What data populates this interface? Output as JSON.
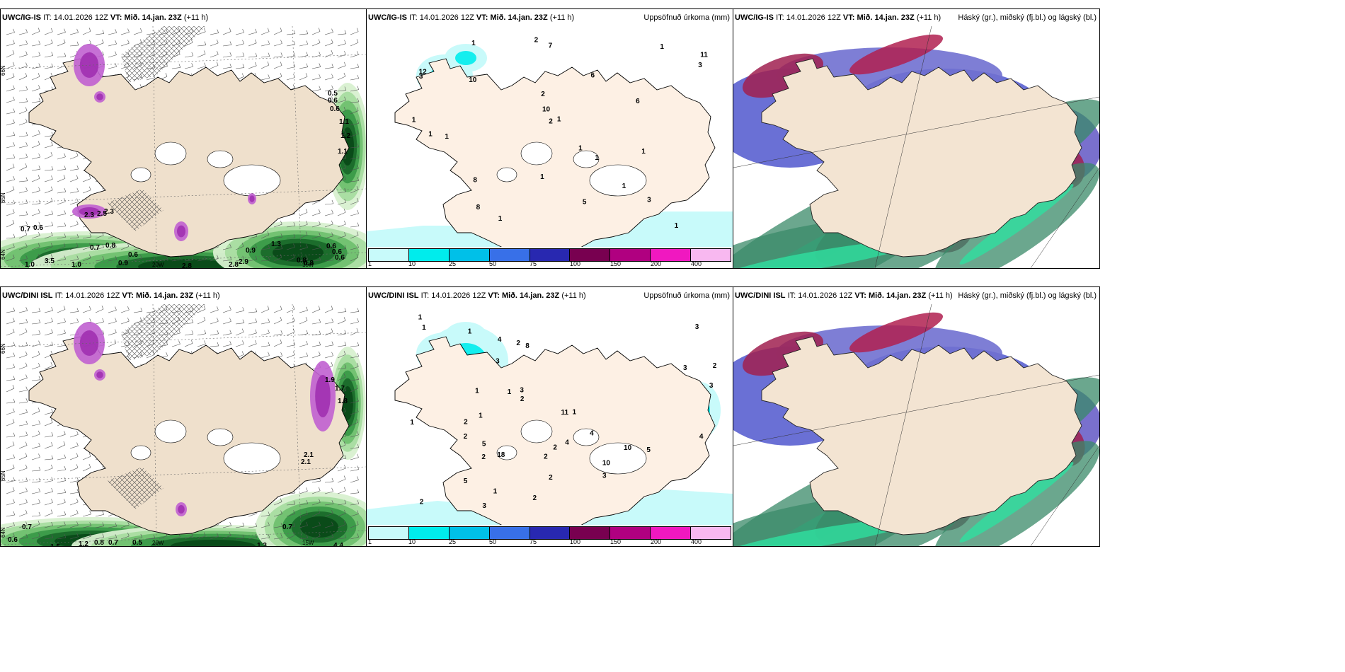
{
  "colorbar": {
    "ticks": [
      "1",
      "10",
      "25",
      "50",
      "75",
      "100",
      "150",
      "200",
      "400"
    ],
    "colors": [
      "#c8fafa",
      "#00ecec",
      "#00c0e8",
      "#3870e8",
      "#2828b0",
      "#780050",
      "#b00080",
      "#f018c0",
      "#f8b8f0"
    ]
  },
  "panels": [
    {
      "model": "UWC/IG-IS",
      "it_prefix": "IT:",
      "it_value": "14.01.2026 12Z",
      "vt_prefix": "VT:",
      "vt_value": "Mið. 14.jan. 23Z",
      "lead": "(+11 h)",
      "right_title": "",
      "type": "wind",
      "labels": [
        "0.5",
        "0.6",
        "0.6",
        "1.1",
        "1.2",
        "1.1",
        "0.7",
        "0.6",
        "0.7",
        "0.8",
        "0.6",
        "0.9",
        "1.0",
        "3.5",
        "1.0",
        "2.8",
        "2.8",
        "2.9",
        "0.9",
        "1.3",
        "0.8",
        "0.8",
        "0.6",
        "0.6",
        "0.6",
        "2.3",
        "2.5",
        "2.3"
      ],
      "deg_labels": [
        "66N",
        "65N",
        "64N",
        "63N",
        "20W",
        "15W",
        "66N",
        "64N"
      ]
    },
    {
      "model": "UWC/IG-IS",
      "it_prefix": "IT:",
      "it_value": "14.01.2026 12Z",
      "vt_prefix": "VT:",
      "vt_value": "Mið. 14.jan. 23Z",
      "lead": "(+11 h)",
      "right_title": "Uppsöfnuð úrkoma (mm)",
      "type": "precip",
      "labels": [
        "1",
        "7",
        "6",
        "11",
        "12",
        "1",
        "1",
        "6",
        "2",
        "1",
        "1",
        "1",
        "2",
        "3",
        "10",
        "8",
        "5",
        "1",
        "1",
        "1",
        "1",
        "3",
        "3",
        "10",
        "8",
        "2",
        "1",
        "1",
        "1"
      ]
    },
    {
      "model": "UWC/IG-IS",
      "it_prefix": "IT:",
      "it_value": "14.01.2026 12Z",
      "vt_prefix": "VT:",
      "vt_value": "Mið. 14.jan. 23Z",
      "lead": "(+11 h)",
      "right_title": "Háský (gr.), miðský (fj.bl.) og lágský (bl.)",
      "type": "cloud"
    },
    {
      "model": "UWC/DINI ISL",
      "it_prefix": "IT:",
      "it_value": "14.01.2026 12Z",
      "vt_prefix": "VT:",
      "vt_value": "Mið. 14.jan. 23Z",
      "lead": "(+11 h)",
      "right_title": "",
      "type": "wind",
      "labels": [
        "1.9",
        "1.7",
        "1.8",
        "2.1",
        "2.1",
        "0.7",
        "0.6",
        "1.5",
        "1.2",
        "0.8",
        "0.7",
        "0.5",
        "1.1",
        "0.7",
        "4.4",
        "1.3"
      ],
      "deg_labels": [
        "66N",
        "65N",
        "64N",
        "63N",
        "20W",
        "15W",
        "66N",
        "64N"
      ]
    },
    {
      "model": "UWC/DINI ISL",
      "it_prefix": "IT:",
      "it_value": "14.01.2026 12Z",
      "vt_prefix": "VT:",
      "vt_value": "Mið. 14.jan. 23Z",
      "lead": "(+11 h)",
      "right_title": "Uppsöfnuð úrkoma (mm)",
      "type": "precip",
      "labels": [
        "1",
        "1",
        "1",
        "3",
        "2",
        "10",
        "8",
        "18",
        "2",
        "10",
        "2",
        "1",
        "3",
        "2",
        "2",
        "1",
        "2",
        "5",
        "3",
        "3",
        "3",
        "2",
        "1",
        "1",
        "2",
        "4",
        "5",
        "5",
        "2",
        "2",
        "4",
        "4",
        "3",
        "4",
        "11",
        "1",
        "1",
        "2",
        "3"
      ]
    },
    {
      "model": "UWC/DINI ISL",
      "it_prefix": "IT:",
      "it_value": "14.01.2026 12Z",
      "vt_prefix": "VT:",
      "vt_value": "Mið. 14.jan. 23Z",
      "lead": "(+11 h)",
      "right_title": "Háský (gr.), miðský (fj.bl.) og lágský (bl.)",
      "type": "cloud"
    }
  ]
}
